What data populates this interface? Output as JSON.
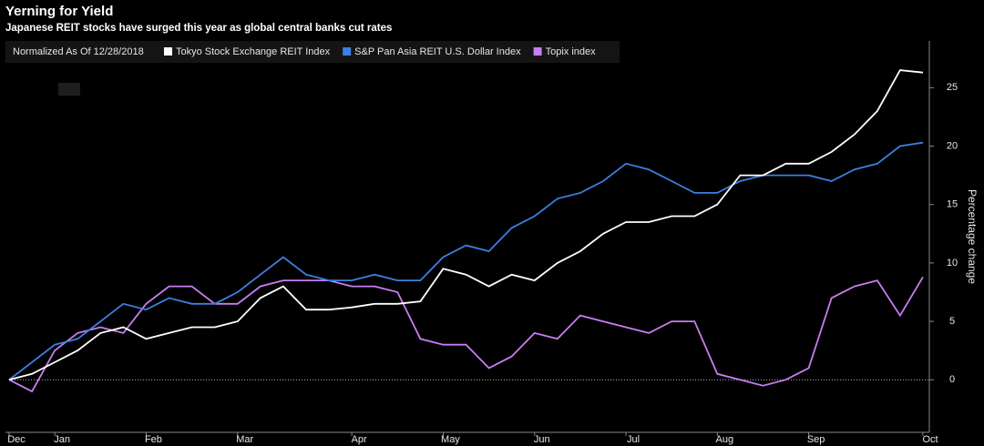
{
  "chart_data": {
    "type": "line",
    "title": "Yerning for Yield",
    "subtitle": "Japanese REIT stocks have surged this year as global central banks cut rates",
    "legend_note": "Normalized As Of 12/28/2018",
    "y_label": "Percentage change",
    "categories": [
      "Dec",
      null,
      "Jan",
      null,
      null,
      null,
      "Feb",
      null,
      null,
      null,
      "Mar",
      null,
      null,
      null,
      null,
      "Apr",
      null,
      null,
      null,
      "May",
      null,
      null,
      null,
      "Jun",
      null,
      null,
      null,
      "Jul",
      null,
      null,
      null,
      "Aug",
      null,
      null,
      null,
      "Sep",
      null,
      null,
      null,
      null,
      "Oct"
    ],
    "series": [
      {
        "name": "Tokyo Stock Exchange REIT Index",
        "color": "#ffffff",
        "values": [
          0,
          0.5,
          1.5,
          2.5,
          4,
          4.5,
          3.5,
          4,
          4.5,
          4.5,
          5,
          7,
          8,
          6,
          6,
          6.2,
          6.5,
          6.5,
          6.7,
          9.5,
          9,
          8,
          9,
          8.5,
          10,
          11,
          12.5,
          13.5,
          13.5,
          14,
          14,
          15,
          17.5,
          17.5,
          18.5,
          18.5,
          19.5,
          21,
          23,
          26.5,
          26.3
        ]
      },
      {
        "name": "S&P Pan Asia REIT U.S. Dollar Index",
        "color": "#3d7fe0",
        "values": [
          0,
          1.5,
          3,
          3.5,
          5,
          6.5,
          6,
          7,
          6.5,
          6.5,
          7.5,
          9,
          10.5,
          9,
          8.5,
          8.5,
          9,
          8.5,
          8.5,
          10.5,
          11.5,
          11,
          13,
          14,
          15.5,
          16,
          17,
          18.5,
          18,
          17,
          16,
          16,
          17,
          17.5,
          17.5,
          17.5,
          17,
          18,
          18.5,
          20,
          20.3
        ]
      },
      {
        "name": "Topix index",
        "color": "#c77ef0",
        "values": [
          0,
          -1,
          2.5,
          4,
          4.5,
          4,
          6.5,
          8,
          8,
          6.5,
          6.5,
          8,
          8.5,
          8.5,
          8.5,
          8,
          8,
          7.5,
          3.5,
          3,
          3,
          1,
          2,
          4,
          3.5,
          5.5,
          5,
          4.5,
          4,
          5,
          5,
          0.5,
          0,
          -0.5,
          0,
          1,
          7,
          8,
          8.5,
          5.5,
          8.8
        ]
      }
    ],
    "ylim": [
      -4.5,
      29
    ],
    "yticks": [
      0,
      5,
      10,
      15,
      20,
      25
    ]
  }
}
